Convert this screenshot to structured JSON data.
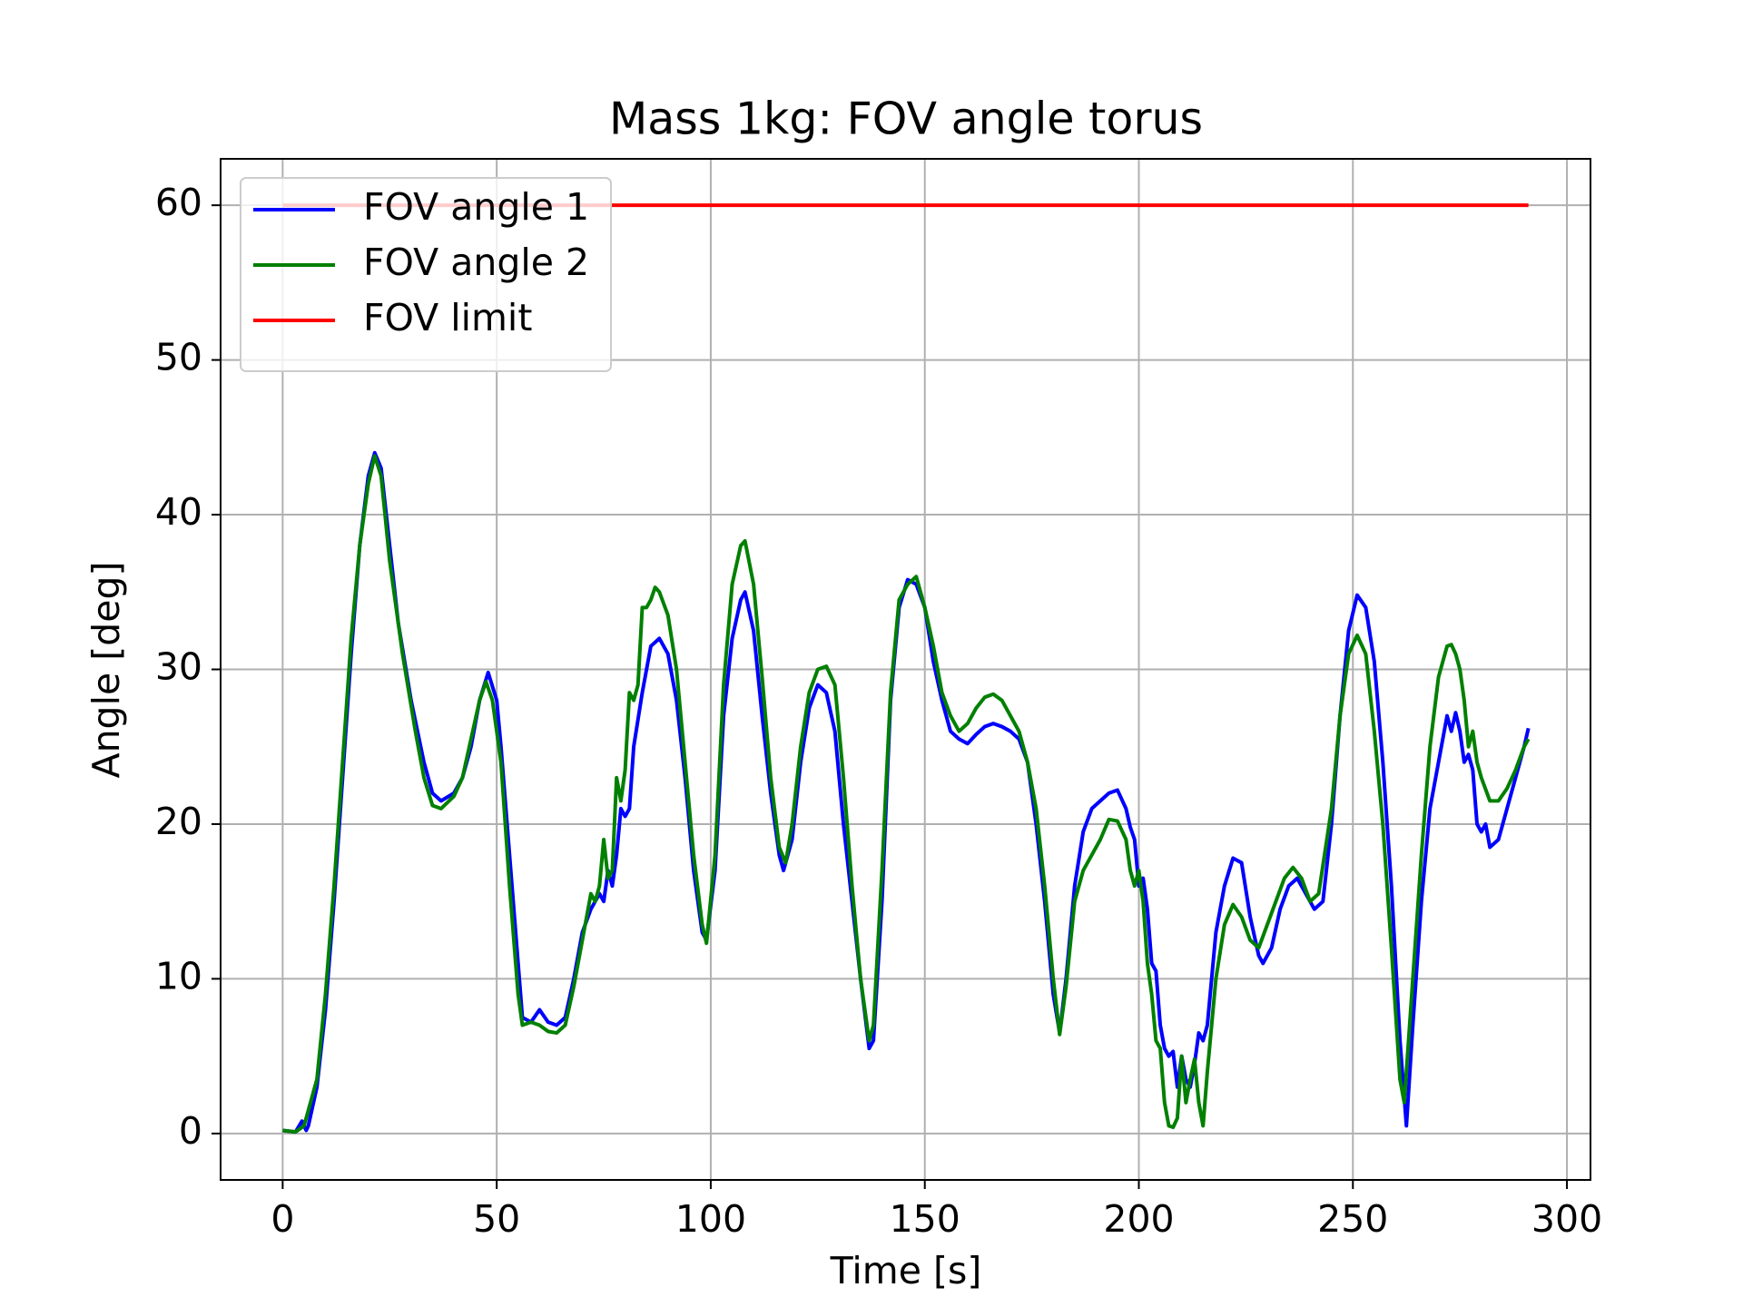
{
  "chart_data": {
    "type": "line",
    "title": "Mass 1kg: FOV angle torus",
    "xlabel": "Time [s]",
    "ylabel": "Angle [deg]",
    "xlim": [
      -14.5,
      305.5
    ],
    "ylim": [
      -3,
      63
    ],
    "xticks": [
      0,
      50,
      100,
      150,
      200,
      250,
      300
    ],
    "yticks": [
      0,
      10,
      20,
      30,
      40,
      50,
      60
    ],
    "grid": true,
    "legend": "upper left",
    "series": [
      {
        "name": "FOV angle 1",
        "color": "#0000ff",
        "x": [
          0,
          3,
          4.5,
          5.5,
          6,
          8,
          10,
          12,
          14,
          16,
          18,
          20,
          21.5,
          23,
          25,
          27,
          30,
          33,
          35,
          37,
          40,
          42,
          44,
          46,
          48,
          50,
          51,
          53,
          55,
          56,
          58,
          60,
          62,
          64,
          66,
          68,
          70,
          72,
          74,
          75,
          76,
          77,
          78,
          79,
          80,
          81,
          82,
          84,
          86,
          88,
          90,
          92,
          94,
          96,
          98,
          99,
          101,
          103,
          105,
          107,
          108,
          110,
          112,
          114,
          116,
          117,
          119,
          121,
          123,
          125,
          127,
          129,
          131,
          133,
          135,
          137,
          138,
          140,
          142,
          144,
          146,
          148,
          150,
          152,
          154,
          156,
          158,
          160,
          162,
          164,
          166,
          168,
          170,
          172,
          174,
          176,
          178,
          180,
          181.5,
          183,
          185,
          187,
          189,
          191,
          193,
          195,
          197,
          198,
          199,
          200,
          201,
          202,
          203,
          204,
          205,
          206,
          207,
          208,
          209,
          210,
          211,
          212,
          213,
          214,
          215,
          216,
          218,
          220,
          222,
          224,
          226,
          228,
          229,
          231,
          233,
          235,
          237,
          239,
          241,
          243,
          245,
          247,
          249,
          251,
          253,
          255,
          257,
          259,
          261,
          262.5,
          264,
          266,
          268,
          270,
          272,
          273,
          274,
          275,
          276,
          277,
          278,
          279,
          280,
          281,
          282,
          284,
          286,
          288,
          290,
          291
        ],
        "values": [
          0.2,
          0.1,
          0.8,
          0.2,
          0.5,
          3,
          8,
          15,
          23,
          31,
          38,
          42.5,
          44,
          43,
          38,
          33,
          28,
          24,
          22,
          21.5,
          22,
          23,
          25,
          28,
          29.8,
          28,
          25,
          18,
          11,
          7.5,
          7.2,
          8,
          7.2,
          7,
          7.5,
          10,
          13,
          14.5,
          15.5,
          15,
          17,
          16,
          18,
          21,
          20.5,
          21,
          25,
          28.5,
          31.5,
          32,
          31,
          28,
          23,
          17,
          13,
          12.5,
          17,
          27,
          32,
          34.5,
          35,
          32.5,
          27,
          22,
          18,
          17,
          19,
          24,
          27.5,
          29,
          28.5,
          26,
          20,
          15,
          10,
          5.5,
          6,
          15,
          28,
          34,
          35.8,
          35.5,
          34,
          30.5,
          28,
          26,
          25.5,
          25.2,
          25.8,
          26.3,
          26.5,
          26.3,
          26,
          25.5,
          24,
          20,
          15,
          9,
          6.5,
          10,
          16,
          19.5,
          21,
          21.5,
          22,
          22.2,
          21,
          19.8,
          19,
          16,
          16.5,
          14.5,
          11,
          10.5,
          7,
          5.5,
          5,
          5.3,
          3,
          5,
          3.5,
          3,
          4.5,
          6.5,
          6,
          7,
          13,
          16,
          17.8,
          17.5,
          14,
          11.5,
          11,
          12,
          14.5,
          16,
          16.5,
          15.5,
          14.5,
          15,
          20,
          27,
          32.5,
          34.8,
          34,
          30.5,
          24,
          16,
          6,
          0.5,
          7,
          15,
          21,
          24,
          27,
          26,
          27.2,
          26,
          24,
          24.5,
          23.5,
          20,
          19.5,
          20,
          18.5,
          19,
          21,
          23,
          25,
          26.2
        ]
      },
      {
        "name": "FOV angle 2",
        "color": "#008000",
        "x": [
          0,
          3,
          5,
          6,
          8,
          10,
          12,
          14,
          16,
          18,
          20,
          21.5,
          23,
          25,
          28,
          31,
          33,
          35,
          37,
          40,
          42,
          44,
          46,
          47.5,
          49,
          51,
          53,
          55,
          56,
          58,
          60,
          62,
          64,
          66,
          68,
          70,
          72,
          73,
          74,
          75,
          76,
          77,
          78,
          79,
          80,
          81,
          82,
          83,
          84,
          85,
          86,
          87,
          88,
          90,
          92,
          94,
          96,
          98,
          99,
          101,
          103,
          105,
          107,
          108,
          110,
          112,
          114,
          116,
          117.5,
          119,
          121,
          123,
          125,
          127,
          129,
          131,
          133,
          135,
          137,
          138,
          140,
          142,
          144,
          146,
          148,
          150,
          152,
          154,
          156,
          158,
          160,
          162,
          164,
          166,
          168,
          170,
          172,
          174,
          176,
          178,
          180,
          181.5,
          183,
          185,
          187,
          189,
          191,
          193,
          195,
          197,
          198,
          199,
          200,
          201,
          202,
          203,
          204,
          205,
          206,
          207,
          208,
          209,
          210,
          211,
          212,
          213,
          214,
          215,
          216,
          218,
          220,
          222,
          224,
          226,
          228,
          230,
          232,
          234,
          236,
          238,
          240,
          242,
          245,
          247,
          249,
          251,
          253,
          255,
          257,
          259,
          261,
          262,
          264,
          266,
          268,
          270,
          272,
          273,
          274,
          275,
          276,
          277,
          278,
          279,
          280,
          282,
          284,
          286,
          288,
          290,
          291
        ],
        "values": [
          0.2,
          0.1,
          0.5,
          1.5,
          3.5,
          9,
          16,
          24,
          32,
          38,
          42,
          43.8,
          42.5,
          37,
          31,
          26,
          23,
          21.2,
          21,
          21.8,
          23,
          25.5,
          28,
          29.2,
          28,
          24,
          16,
          9,
          7,
          7.2,
          7,
          6.6,
          6.5,
          7,
          9.5,
          12.5,
          15.5,
          15,
          16,
          19,
          16.5,
          17,
          23,
          21.5,
          23.5,
          28.5,
          28,
          29,
          34,
          34,
          34.5,
          35.3,
          35,
          33.5,
          30,
          24,
          18,
          13.5,
          12.3,
          18,
          29,
          35.5,
          38,
          38.3,
          35.5,
          29.5,
          23,
          18.5,
          17.5,
          20,
          25,
          28.5,
          30,
          30.2,
          29,
          23,
          16,
          10,
          6,
          7,
          17,
          28.5,
          34.5,
          35.5,
          36,
          34,
          31.5,
          28.5,
          27,
          26,
          26.5,
          27.5,
          28.2,
          28.4,
          28,
          27,
          26,
          24,
          21,
          16,
          10,
          6.4,
          9.5,
          15,
          17,
          18,
          19,
          20.3,
          20.2,
          19,
          17,
          16,
          17,
          15,
          11,
          9,
          6,
          5.5,
          2,
          0.5,
          0.4,
          1,
          5,
          2,
          3.5,
          4.8,
          2,
          0.5,
          4,
          10,
          13.5,
          14.8,
          14,
          12.5,
          12,
          13.5,
          15,
          16.5,
          17.2,
          16.5,
          15,
          15.5,
          21,
          27,
          31,
          32.2,
          31,
          26,
          20,
          12,
          3.5,
          2,
          10,
          18,
          25,
          29.5,
          31.5,
          31.6,
          31,
          30,
          28,
          25,
          26,
          24,
          23,
          21.5,
          21.5,
          22.3,
          23.5,
          25,
          25.5
        ]
      },
      {
        "name": "FOV limit",
        "color": "#ff0000",
        "x": [
          0,
          291
        ],
        "values": [
          60,
          60
        ]
      }
    ]
  }
}
